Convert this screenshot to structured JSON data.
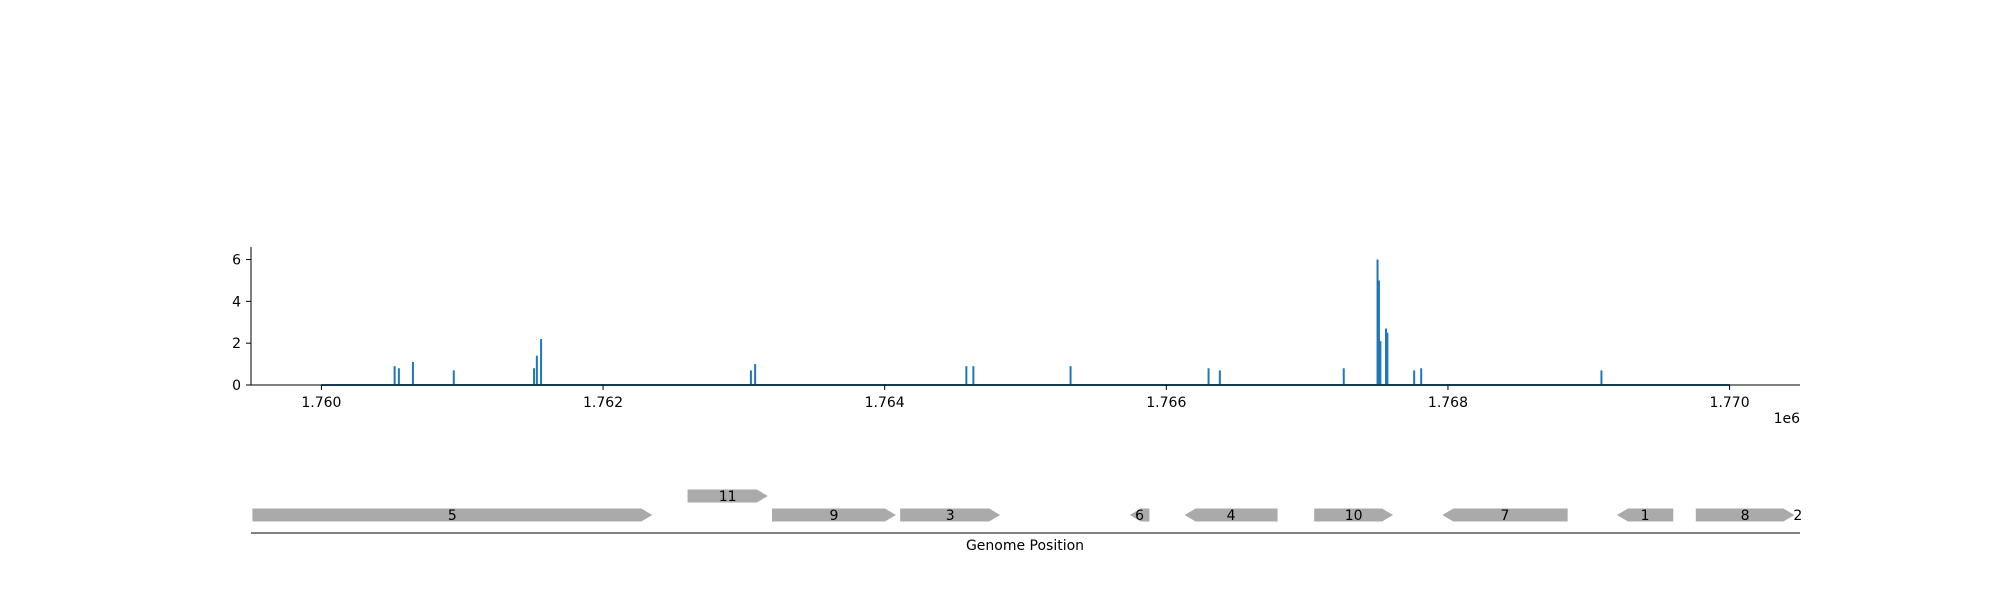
{
  "chart_data": [
    {
      "type": "bar",
      "xlabel": "",
      "ylabel": "",
      "x_offset_label": "1e6",
      "xlim": [
        1759500,
        1770500
      ],
      "ylim": [
        0,
        6.6
      ],
      "x_ticks": [
        1760000,
        1762000,
        1764000,
        1766000,
        1768000,
        1770000
      ],
      "x_tick_labels": [
        "1.760",
        "1.762",
        "1.764",
        "1.766",
        "1.768",
        "1.770"
      ],
      "y_ticks": [
        0,
        2,
        4,
        6
      ],
      "y_tick_labels": [
        "0",
        "2",
        "4",
        "6"
      ],
      "baseline": [
        1760000,
        1770000
      ],
      "spikes": [
        {
          "x": 1760520,
          "y": 0.9
        },
        {
          "x": 1760550,
          "y": 0.8
        },
        {
          "x": 1760650,
          "y": 1.1
        },
        {
          "x": 1760940,
          "y": 0.7
        },
        {
          "x": 1761510,
          "y": 0.8
        },
        {
          "x": 1761530,
          "y": 1.4
        },
        {
          "x": 1761560,
          "y": 2.2
        },
        {
          "x": 1763050,
          "y": 0.7
        },
        {
          "x": 1763080,
          "y": 1.0
        },
        {
          "x": 1764580,
          "y": 0.9
        },
        {
          "x": 1764630,
          "y": 0.9
        },
        {
          "x": 1765320,
          "y": 0.9
        },
        {
          "x": 1766300,
          "y": 0.8
        },
        {
          "x": 1766380,
          "y": 0.7
        },
        {
          "x": 1767260,
          "y": 0.8
        },
        {
          "x": 1767500,
          "y": 6.0
        },
        {
          "x": 1767510,
          "y": 5.0
        },
        {
          "x": 1767520,
          "y": 2.1
        },
        {
          "x": 1767560,
          "y": 2.7
        },
        {
          "x": 1767570,
          "y": 2.5
        },
        {
          "x": 1767760,
          "y": 0.7
        },
        {
          "x": 1767810,
          "y": 0.8
        },
        {
          "x": 1769090,
          "y": 0.7
        }
      ],
      "color": "#1f77b4"
    },
    {
      "type": "gene-track",
      "xlabel": "Genome Position",
      "color": "#aaaaaa",
      "genes": [
        {
          "label": "5",
          "start": 1759510,
          "end": 1762350,
          "strand": "+",
          "row": 0
        },
        {
          "label": "11",
          "start": 1762600,
          "end": 1763170,
          "strand": "+",
          "row": 1
        },
        {
          "label": "9",
          "start": 1763200,
          "end": 1764080,
          "strand": "+",
          "row": 0
        },
        {
          "label": "3",
          "start": 1764110,
          "end": 1764820,
          "strand": "+",
          "row": 0
        },
        {
          "label": "6",
          "start": 1765740,
          "end": 1765880,
          "strand": "-",
          "row": 0
        },
        {
          "label": "4",
          "start": 1766130,
          "end": 1766790,
          "strand": "-",
          "row": 0
        },
        {
          "label": "10",
          "start": 1767050,
          "end": 1767610,
          "strand": "+",
          "row": 0
        },
        {
          "label": "7",
          "start": 1767960,
          "end": 1768850,
          "strand": "-",
          "row": 0
        },
        {
          "label": "1",
          "start": 1769200,
          "end": 1769600,
          "strand": "-",
          "row": 0
        },
        {
          "label": "8",
          "start": 1769760,
          "end": 1770460,
          "strand": "+",
          "row": 0
        },
        {
          "label": "2",
          "start": 1770480,
          "end": 1770490,
          "strand": "+",
          "row": 0
        }
      ]
    }
  ]
}
